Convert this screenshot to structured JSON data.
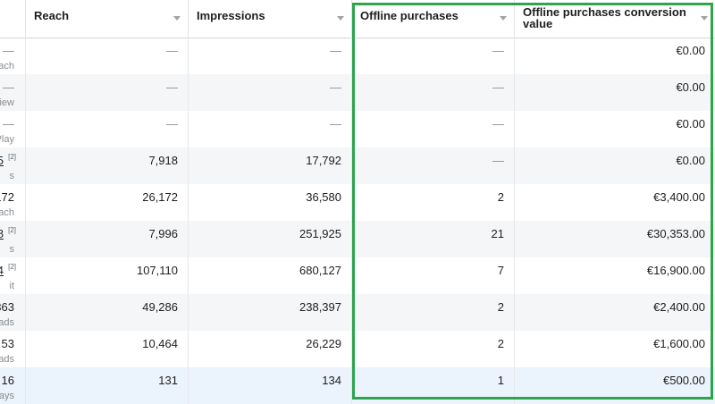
{
  "columns": [
    {
      "label": ""
    },
    {
      "label": "Reach"
    },
    {
      "label": "Impressions"
    },
    {
      "label": "Offline purchases"
    },
    {
      "label": "Offline purchases conversion value"
    }
  ],
  "rows": [
    {
      "c0_value": "—",
      "c0_sub": "ach",
      "c0_note": "",
      "reach": "—",
      "impressions": "—",
      "offline_purchases": "—",
      "conversion_value": "€0.00"
    },
    {
      "c0_value": "—",
      "c0_sub": "iew",
      "c0_note": "",
      "reach": "—",
      "impressions": "—",
      "offline_purchases": "—",
      "conversion_value": "€0.00"
    },
    {
      "c0_value": "—",
      "c0_sub": "Play",
      "c0_note": "",
      "reach": "—",
      "impressions": "—",
      "offline_purchases": "—",
      "conversion_value": "€0.00"
    },
    {
      "c0_value": "5",
      "c0_sub": "s",
      "c0_note": "[2]",
      "reach": "7,918",
      "impressions": "17,792",
      "offline_purchases": "—",
      "conversion_value": "€0.00"
    },
    {
      "c0_value": "172",
      "c0_sub": "ach",
      "c0_note": "",
      "reach": "26,172",
      "impressions": "36,580",
      "offline_purchases": "2",
      "conversion_value": "€3,400.00"
    },
    {
      "c0_value": "8",
      "c0_sub": "s",
      "c0_note": "[2]",
      "reach": "7,996",
      "impressions": "251,925",
      "offline_purchases": "21",
      "conversion_value": "€30,353.00"
    },
    {
      "c0_value": "4",
      "c0_sub": "it",
      "c0_note": "[2]",
      "reach": "107,110",
      "impressions": "680,127",
      "offline_purchases": "7",
      "conversion_value": "€16,900.00"
    },
    {
      "c0_value": "363",
      "c0_sub": "ads",
      "c0_note": "",
      "reach": "49,286",
      "impressions": "238,397",
      "offline_purchases": "2",
      "conversion_value": "€2,400.00"
    },
    {
      "c0_value": "53",
      "c0_sub": "ads",
      "c0_note": "",
      "reach": "10,464",
      "impressions": "26,229",
      "offline_purchases": "2",
      "conversion_value": "€1,600.00"
    },
    {
      "c0_value": "16",
      "c0_sub": "ays",
      "c0_note": "",
      "reach": "131",
      "impressions": "134",
      "offline_purchases": "1",
      "conversion_value": "€500.00"
    }
  ],
  "highlight_color": "#2ea44f"
}
